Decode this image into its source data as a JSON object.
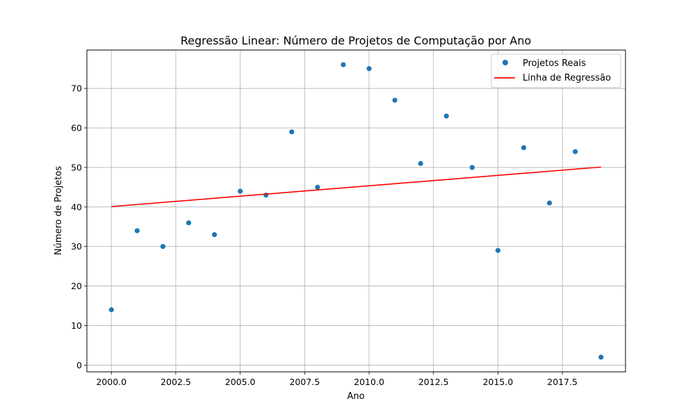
{
  "chart_data": {
    "type": "scatter",
    "title": "Regressão Linear: Número de Projetos de Computação por Ano",
    "xlabel": "Ano",
    "ylabel": "Número de Projetos",
    "xlim": [
      1999.05,
      2019.95
    ],
    "ylim": [
      -1.7,
      79.7
    ],
    "xticks": [
      2000,
      2002.5,
      2005,
      2007.5,
      2010,
      2012.5,
      2015,
      2017.5
    ],
    "xtick_labels": [
      "2000.0",
      "2002.5",
      "2005.0",
      "2007.5",
      "2010.0",
      "2012.5",
      "2015.0",
      "2017.5"
    ],
    "yticks": [
      0,
      10,
      20,
      30,
      40,
      50,
      60,
      70
    ],
    "ytick_labels": [
      "0",
      "10",
      "20",
      "30",
      "40",
      "50",
      "60",
      "70"
    ],
    "grid": true,
    "legend_position": "top-right",
    "series": [
      {
        "name": "Projetos Reais",
        "kind": "scatter",
        "color": "#1f77b4",
        "x": [
          2000,
          2001,
          2002,
          2003,
          2004,
          2005,
          2006,
          2007,
          2008,
          2009,
          2010,
          2011,
          2012,
          2013,
          2014,
          2015,
          2016,
          2017,
          2018,
          2019
        ],
        "y": [
          14,
          34,
          30,
          36,
          33,
          44,
          43,
          59,
          45,
          76,
          75,
          67,
          51,
          63,
          50,
          29,
          55,
          41,
          54,
          2
        ]
      },
      {
        "name": "Linha de Regressão",
        "kind": "line",
        "color": "#ff0000",
        "x": [
          2000,
          2019
        ],
        "y": [
          40.1,
          50.1
        ]
      }
    ]
  }
}
